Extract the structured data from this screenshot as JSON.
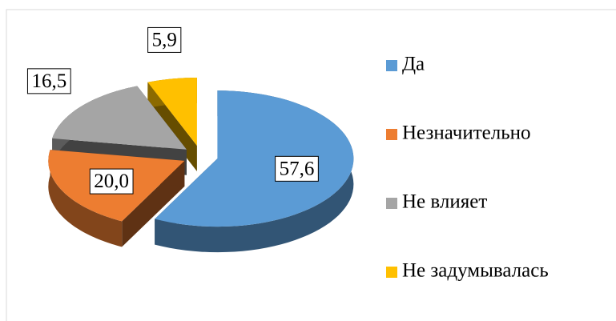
{
  "chart_data": {
    "type": "pie",
    "categories": [
      "Да",
      "Незначительно",
      "Не влияет",
      "Не задумывалась"
    ],
    "values": [
      57.6,
      20.0,
      16.5,
      5.9
    ],
    "value_labels": [
      "57,6",
      "20,0",
      "16,5",
      "5,9"
    ],
    "colors": [
      "#5b9bd5",
      "#ed7d31",
      "#a5a5a5",
      "#ffc000"
    ],
    "legend": "right"
  }
}
